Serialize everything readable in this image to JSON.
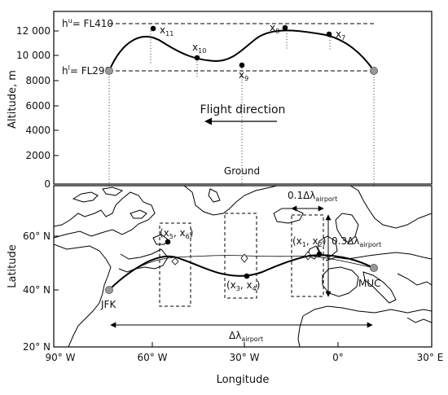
{
  "top_panel": {
    "y_axis_title": "Altitude, m",
    "y_ticks": [
      "0",
      "2000",
      "4000",
      "6000",
      "8000",
      "10 000",
      "12 000"
    ],
    "ceiling_label": "h",
    "ceiling_label_sup": "u",
    "ceiling_value": "= FL410",
    "floor_label": "h",
    "floor_label_sup": "l",
    "floor_value": "= FL290",
    "flight_direction": "Flight direction",
    "ground": "Ground",
    "points": {
      "x11": {
        "main": "x",
        "sub": "11"
      },
      "x10": {
        "main": "x",
        "sub": "10"
      },
      "x9": {
        "main": "x",
        "sub": "9"
      },
      "x8": {
        "main": "x",
        "sub": "8"
      },
      "x7": {
        "main": "x",
        "sub": "7"
      }
    }
  },
  "bottom_panel": {
    "y_axis_title": "Latitude",
    "x_axis_title": "Longitude",
    "y_ticks": [
      "20° N",
      "40° N",
      "60° N"
    ],
    "x_ticks": [
      "90° W",
      "60° W",
      "30° W",
      "0°",
      "30° E"
    ],
    "jfk": "JFK",
    "muc": "MUC",
    "p56": {
      "a": "(x",
      "s1": "5",
      "b": ", x",
      "s2": "6",
      "c": ")"
    },
    "p34": {
      "a": "(x",
      "s1": "3",
      "b": ", x",
      "s2": "4",
      "c": ")"
    },
    "p12": {
      "a": "(x",
      "s1": "1",
      "b": ", x",
      "s2": "2",
      "c": ")"
    },
    "dlam_main": "Δλ",
    "dlam_sub": "airport",
    "dlam01_main": "0.1Δλ",
    "dlam01_sub": "airport",
    "dlam03_main": "0.3Δλ",
    "dlam03_sub": "airport"
  }
}
